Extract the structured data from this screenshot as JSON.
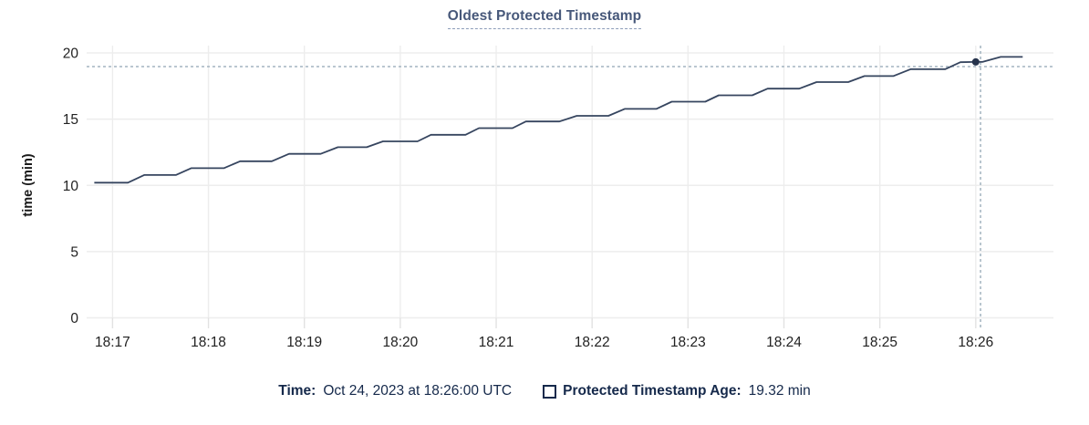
{
  "title": "Oldest Protected Timestamp",
  "y_axis_label": "time (min)",
  "legend": {
    "time_label": "Time:",
    "time_value": "Oct 24, 2023 at 18:26:00 UTC",
    "series_label": "Protected Timestamp Age:",
    "series_value": "19.32 min"
  },
  "colors": {
    "line": "#36455f",
    "marker": "#26334c",
    "title": "#47587a",
    "crosshair": "#a3b3c0",
    "gridline": "#ededed",
    "tick_extension": "#e2e2e2",
    "tick_text": "#222222",
    "legend_text": "#15294b"
  },
  "chart_data": {
    "type": "line",
    "title": "Oldest Protected Timestamp",
    "xlabel": "",
    "ylabel": "time (min)",
    "x_unit": "time of day UTC, decimal minutes after 18:00",
    "xlim": [
      16.73,
      26.81
    ],
    "ylim": [
      0,
      20
    ],
    "grid": true,
    "legend_position": "bottom",
    "x_ticks": [
      {
        "t": 17,
        "label": "18:17"
      },
      {
        "t": 18,
        "label": "18:18"
      },
      {
        "t": 19,
        "label": "18:19"
      },
      {
        "t": 20,
        "label": "18:20"
      },
      {
        "t": 21,
        "label": "18:21"
      },
      {
        "t": 22,
        "label": "18:22"
      },
      {
        "t": 23,
        "label": "18:23"
      },
      {
        "t": 24,
        "label": "18:24"
      },
      {
        "t": 25,
        "label": "18:25"
      },
      {
        "t": 26,
        "label": "18:26"
      }
    ],
    "y_ticks": [
      0,
      5,
      10,
      15,
      20
    ],
    "series": [
      {
        "name": "Protected Timestamp Age",
        "points": [
          [
            16.81,
            10.2
          ],
          [
            17.16,
            10.2
          ],
          [
            17.33,
            10.78
          ],
          [
            17.66,
            10.78
          ],
          [
            17.82,
            11.3
          ],
          [
            18.16,
            11.3
          ],
          [
            18.33,
            11.82
          ],
          [
            18.66,
            11.82
          ],
          [
            18.84,
            12.38
          ],
          [
            19.17,
            12.38
          ],
          [
            19.35,
            12.88
          ],
          [
            19.65,
            12.88
          ],
          [
            19.82,
            13.32
          ],
          [
            20.18,
            13.32
          ],
          [
            20.32,
            13.82
          ],
          [
            20.68,
            13.82
          ],
          [
            20.82,
            14.32
          ],
          [
            21.17,
            14.32
          ],
          [
            21.31,
            14.82
          ],
          [
            21.66,
            14.82
          ],
          [
            21.84,
            15.25
          ],
          [
            22.17,
            15.25
          ],
          [
            22.34,
            15.77
          ],
          [
            22.67,
            15.77
          ],
          [
            22.83,
            16.32
          ],
          [
            23.18,
            16.32
          ],
          [
            23.32,
            16.8
          ],
          [
            23.67,
            16.8
          ],
          [
            23.83,
            17.3
          ],
          [
            24.16,
            17.3
          ],
          [
            24.34,
            17.8
          ],
          [
            24.67,
            17.8
          ],
          [
            24.84,
            18.25
          ],
          [
            25.14,
            18.25
          ],
          [
            25.32,
            18.77
          ],
          [
            25.68,
            18.77
          ],
          [
            25.84,
            19.3
          ],
          [
            26.0,
            19.32
          ],
          [
            26.07,
            19.32
          ],
          [
            26.26,
            19.7
          ],
          [
            26.49,
            19.7
          ]
        ]
      }
    ],
    "hover_marker": {
      "t": 26.0,
      "value": 19.32
    },
    "crosshair": {
      "t": 26.05,
      "value": 18.97
    }
  }
}
